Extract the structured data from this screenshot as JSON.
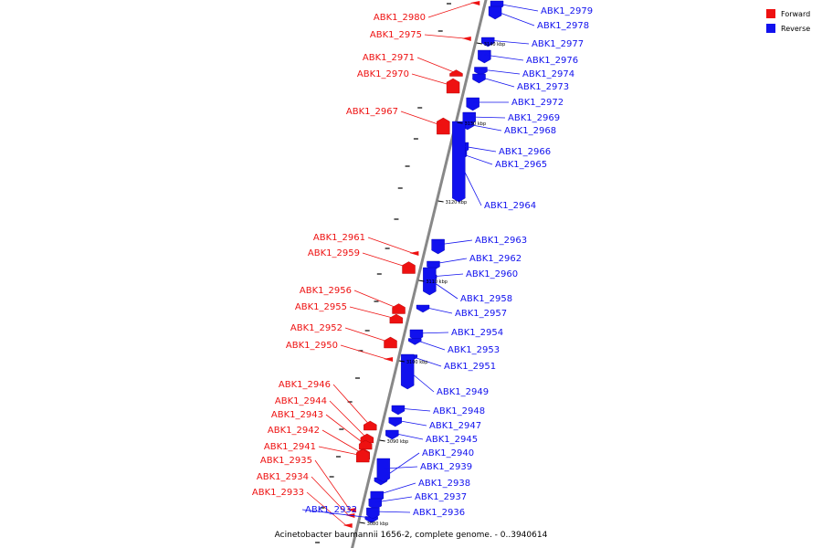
{
  "caption": "Acinetobacter baumannii 1656-2, complete genome. - 0..3940614",
  "legend": [
    {
      "label": "Forward",
      "color": "#ee1111"
    },
    {
      "label": "Reverse",
      "color": "#1111ee"
    }
  ],
  "colors": {
    "forward": "#ee1111",
    "reverse": "#1111ee",
    "backbone": "#888888"
  },
  "scale_labels": [
    "3080 kbp",
    "3090 kbp",
    "3100 kbp",
    "3110 kbp",
    "3120 kbp",
    "3130 kbp",
    "3140 kbp"
  ],
  "genes": [
    {
      "id": "ABK1_2980",
      "strand": "forward"
    },
    {
      "id": "ABK1_2979",
      "strand": "reverse"
    },
    {
      "id": "ABK1_2978",
      "strand": "reverse"
    },
    {
      "id": "ABK1_2975",
      "strand": "forward"
    },
    {
      "id": "ABK1_2977",
      "strand": "reverse"
    },
    {
      "id": "ABK1_2971",
      "strand": "forward"
    },
    {
      "id": "ABK1_2976",
      "strand": "reverse"
    },
    {
      "id": "ABK1_2970",
      "strand": "forward"
    },
    {
      "id": "ABK1_2974",
      "strand": "reverse"
    },
    {
      "id": "ABK1_2973",
      "strand": "reverse"
    },
    {
      "id": "ABK1_2972",
      "strand": "reverse"
    },
    {
      "id": "ABK1_2967",
      "strand": "forward"
    },
    {
      "id": "ABK1_2969",
      "strand": "reverse"
    },
    {
      "id": "ABK1_2968",
      "strand": "reverse"
    },
    {
      "id": "ABK1_2966",
      "strand": "reverse"
    },
    {
      "id": "ABK1_2965",
      "strand": "reverse"
    },
    {
      "id": "ABK1_2964",
      "strand": "reverse"
    },
    {
      "id": "ABK1_2961",
      "strand": "forward"
    },
    {
      "id": "ABK1_2963",
      "strand": "reverse"
    },
    {
      "id": "ABK1_2959",
      "strand": "forward"
    },
    {
      "id": "ABK1_2962",
      "strand": "reverse"
    },
    {
      "id": "ABK1_2960",
      "strand": "reverse"
    },
    {
      "id": "ABK1_2956",
      "strand": "forward"
    },
    {
      "id": "ABK1_2958",
      "strand": "reverse"
    },
    {
      "id": "ABK1_2955",
      "strand": "forward"
    },
    {
      "id": "ABK1_2957",
      "strand": "reverse"
    },
    {
      "id": "ABK1_2952",
      "strand": "forward"
    },
    {
      "id": "ABK1_2954",
      "strand": "reverse"
    },
    {
      "id": "ABK1_2950",
      "strand": "forward"
    },
    {
      "id": "ABK1_2953",
      "strand": "reverse"
    },
    {
      "id": "ABK1_2951",
      "strand": "reverse"
    },
    {
      "id": "ABK1_2946",
      "strand": "forward"
    },
    {
      "id": "ABK1_2949",
      "strand": "reverse"
    },
    {
      "id": "ABK1_2944",
      "strand": "forward"
    },
    {
      "id": "ABK1_2948",
      "strand": "reverse"
    },
    {
      "id": "ABK1_2943",
      "strand": "forward"
    },
    {
      "id": "ABK1_2947",
      "strand": "reverse"
    },
    {
      "id": "ABK1_2942",
      "strand": "forward"
    },
    {
      "id": "ABK1_2945",
      "strand": "reverse"
    },
    {
      "id": "ABK1_2941",
      "strand": "forward"
    },
    {
      "id": "ABK1_2940",
      "strand": "reverse"
    },
    {
      "id": "ABK1_2935",
      "strand": "forward"
    },
    {
      "id": "ABK1_2939",
      "strand": "reverse"
    },
    {
      "id": "ABK1_2934",
      "strand": "forward"
    },
    {
      "id": "ABK1_2938",
      "strand": "reverse"
    },
    {
      "id": "ABK1_2933",
      "strand": "forward"
    },
    {
      "id": "ABK1_2937",
      "strand": "reverse"
    },
    {
      "id": "ABK1_2932",
      "strand": "reverse"
    },
    {
      "id": "ABK1_2936",
      "strand": "reverse"
    }
  ]
}
